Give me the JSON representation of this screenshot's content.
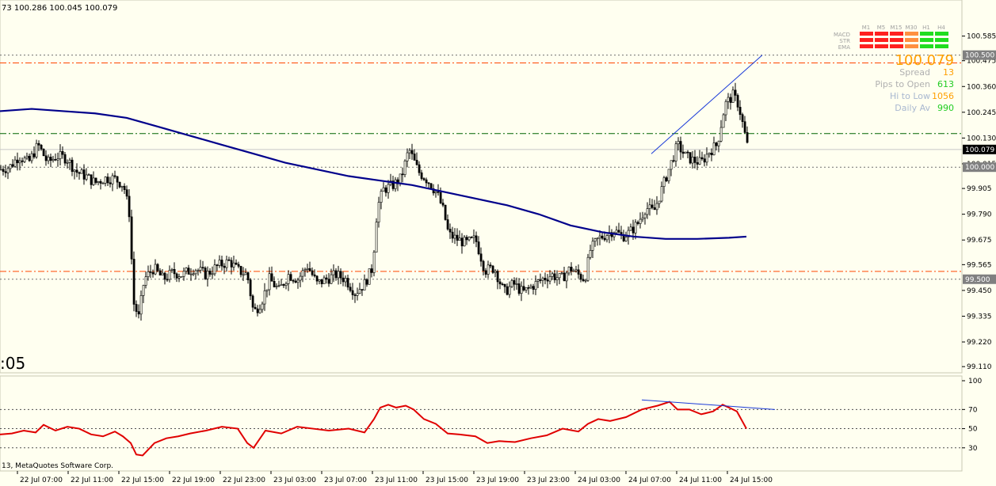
{
  "header": {
    "ohlc_text": "73 100.286 100.045 100.079"
  },
  "footer": {
    "copyright": "13, MetaQuotes Software Corp."
  },
  "countdown": ":05",
  "colors": {
    "background": "#fffff0",
    "candle": "#000000",
    "ma": "#00008b",
    "rsi": "#e00000",
    "trendline": "#1a3ad8",
    "level_green": "#006400",
    "level_orange": "#ff4500",
    "orange_text": "#ff9f00",
    "green_text": "#22cc22",
    "grey_text": "#b0b0b0",
    "light_blue_text": "#a9b8d0"
  },
  "info_panel": {
    "price": "100.079",
    "rows": [
      {
        "label": "Spread",
        "value": "13",
        "value_color": "#ff9f00"
      },
      {
        "label": "Pips to Open",
        "value": "613",
        "value_color": "#22cc22"
      },
      {
        "label": "Hi to Low",
        "value": "1056",
        "value_color": "#ff9f00"
      },
      {
        "label": "Daily Av",
        "value": "990",
        "value_color": "#22cc22"
      }
    ]
  },
  "signal_grid": {
    "timeframes": [
      "M1",
      "M5",
      "M15",
      "M30",
      "H1",
      "H4"
    ],
    "indicators": [
      "MACD",
      "STR",
      "EMA"
    ],
    "colors": [
      [
        "#ff2020",
        "#ff2020",
        "#ff2020",
        "#ff9040",
        "#20dd20",
        "#20dd20"
      ],
      [
        "#ff2020",
        "#ff2020",
        "#ff2020",
        "#ff9040",
        "#20dd20",
        "#20dd20"
      ],
      [
        "#ff2020",
        "#ff2020",
        "#ff2020",
        "#ff9040",
        "#20dd20",
        "#20dd20"
      ]
    ]
  },
  "chart_data": [
    {
      "type": "candlestick",
      "ylim": [
        99.1,
        100.64
      ],
      "y_ticks": [
        "100.585",
        "100.475",
        "100.360",
        "100.245",
        "100.130",
        "100.015",
        "99.905",
        "99.790",
        "99.675",
        "99.565",
        "99.450",
        "99.335",
        "99.220",
        "99.110"
      ],
      "price_tags": [
        {
          "label": "100.500",
          "value": 100.5
        },
        {
          "label": "100.079",
          "value": 100.079
        },
        {
          "label": "100.000",
          "value": 100.0
        },
        {
          "label": "99.500",
          "value": 99.5
        }
      ],
      "levels": [
        {
          "value": 100.5,
          "style": "dotted-grey"
        },
        {
          "value": 100.465,
          "style": "dashdot-orange"
        },
        {
          "value": 100.15,
          "style": "dashdot-green"
        },
        {
          "value": 100.0,
          "style": "dotted-grey"
        },
        {
          "value": 99.535,
          "style": "dashdot-orange"
        },
        {
          "value": 99.5,
          "style": "dotted-grey"
        }
      ],
      "x_labels": [
        "22 Jul 07:00",
        "22 Jul 11:00",
        "22 Jul 15:00",
        "22 Jul 19:00",
        "22 Jul 23:00",
        "23 Jul 03:00",
        "23 Jul 07:00",
        "23 Jul 11:00",
        "23 Jul 15:00",
        "23 Jul 19:00",
        "23 Jul 23:00",
        "24 Jul 03:00",
        "24 Jul 07:00",
        "24 Jul 11:00",
        "24 Jul 15:00"
      ],
      "close_path": [
        [
          0,
          99.99
        ],
        [
          12,
          100.0
        ],
        [
          24,
          100.05
        ],
        [
          36,
          100.02
        ],
        [
          48,
          100.1
        ],
        [
          60,
          100.02
        ],
        [
          72,
          100.05
        ],
        [
          84,
          100.04
        ],
        [
          96,
          99.98
        ],
        [
          108,
          99.96
        ],
        [
          120,
          99.93
        ],
        [
          132,
          99.95
        ],
        [
          144,
          99.95
        ],
        [
          156,
          99.92
        ],
        [
          164,
          99.78
        ],
        [
          168,
          99.4
        ],
        [
          175,
          99.33
        ],
        [
          182,
          99.5
        ],
        [
          194,
          99.55
        ],
        [
          206,
          99.5
        ],
        [
          218,
          99.53
        ],
        [
          230,
          99.52
        ],
        [
          245,
          99.55
        ],
        [
          260,
          99.52
        ],
        [
          275,
          99.56
        ],
        [
          290,
          99.58
        ],
        [
          300,
          99.54
        ],
        [
          312,
          99.52
        ],
        [
          320,
          99.35
        ],
        [
          330,
          99.4
        ],
        [
          340,
          99.5
        ],
        [
          352,
          99.45
        ],
        [
          364,
          99.52
        ],
        [
          376,
          99.5
        ],
        [
          388,
          99.56
        ],
        [
          400,
          99.48
        ],
        [
          412,
          99.5
        ],
        [
          424,
          99.52
        ],
        [
          436,
          99.5
        ],
        [
          448,
          99.44
        ],
        [
          460,
          99.48
        ],
        [
          470,
          99.55
        ],
        [
          476,
          99.82
        ],
        [
          484,
          99.9
        ],
        [
          496,
          99.92
        ],
        [
          506,
          99.95
        ],
        [
          516,
          100.08
        ],
        [
          528,
          99.98
        ],
        [
          540,
          99.94
        ],
        [
          552,
          99.88
        ],
        [
          560,
          99.8
        ],
        [
          566,
          99.7
        ],
        [
          576,
          99.68
        ],
        [
          588,
          99.66
        ],
        [
          600,
          99.68
        ],
        [
          612,
          99.54
        ],
        [
          624,
          99.55
        ],
        [
          636,
          99.44
        ],
        [
          648,
          99.48
        ],
        [
          660,
          99.44
        ],
        [
          672,
          99.47
        ],
        [
          684,
          99.5
        ],
        [
          696,
          99.52
        ],
        [
          708,
          99.5
        ],
        [
          720,
          99.55
        ],
        [
          730,
          99.52
        ],
        [
          738,
          99.5
        ],
        [
          745,
          99.63
        ],
        [
          755,
          99.68
        ],
        [
          765,
          99.7
        ],
        [
          775,
          99.72
        ],
        [
          785,
          99.69
        ],
        [
          795,
          99.71
        ],
        [
          805,
          99.75
        ],
        [
          815,
          99.82
        ],
        [
          825,
          99.8
        ],
        [
          835,
          99.9
        ],
        [
          845,
          100.0
        ],
        [
          855,
          100.1
        ],
        [
          865,
          100.05
        ],
        [
          875,
          100.03
        ],
        [
          885,
          100.02
        ],
        [
          895,
          100.07
        ],
        [
          905,
          100.1
        ],
        [
          915,
          100.28
        ],
        [
          925,
          100.32
        ],
        [
          932,
          100.28
        ],
        [
          938,
          100.18
        ],
        [
          944,
          100.08
        ]
      ],
      "series": [
        {
          "name": "",
          "x": [
            0,
            40,
            80,
            120,
            160,
            200,
            240,
            280,
            320,
            360,
            400,
            440,
            480,
            520,
            560,
            600,
            640,
            680,
            720,
            760,
            800,
            840,
            880,
            920,
            942
          ],
          "y": [
            100.25,
            100.26,
            100.25,
            100.24,
            100.22,
            100.18,
            100.14,
            100.1,
            100.06,
            100.02,
            99.99,
            99.96,
            99.94,
            99.92,
            99.89,
            99.86,
            99.83,
            99.79,
            99.74,
            99.71,
            99.69,
            99.68,
            99.68,
            99.685,
            99.69
          ]
        }
      ],
      "trendline": [
        [
          822,
          100.06
        ],
        [
          962,
          100.5
        ]
      ]
    },
    {
      "type": "line",
      "ylim": [
        10,
        100
      ],
      "y_ticks": [
        "100",
        "70",
        "50",
        "30"
      ],
      "levels": [
        70,
        50,
        30
      ],
      "series": [
        {
          "name": "",
          "x": [
            0,
            15,
            30,
            45,
            55,
            70,
            85,
            100,
            115,
            130,
            145,
            155,
            165,
            172,
            180,
            195,
            210,
            225,
            240,
            260,
            280,
            300,
            312,
            320,
            335,
            355,
            375,
            395,
            415,
            440,
            460,
            472,
            480,
            490,
            500,
            512,
            522,
            535,
            550,
            565,
            580,
            600,
            615,
            630,
            650,
            670,
            690,
            710,
            730,
            742,
            755,
            770,
            790,
            810,
            830,
            845,
            855,
            870,
            885,
            900,
            912,
            920,
            930,
            942
          ],
          "y": [
            44,
            45,
            48,
            46,
            54,
            48,
            52,
            50,
            44,
            42,
            47,
            42,
            35,
            23,
            22,
            35,
            40,
            42,
            45,
            48,
            52,
            50,
            35,
            30,
            48,
            45,
            52,
            50,
            48,
            50,
            46,
            60,
            72,
            75,
            72,
            74,
            70,
            60,
            55,
            45,
            44,
            42,
            35,
            37,
            36,
            40,
            43,
            50,
            47,
            55,
            60,
            58,
            62,
            70,
            74,
            78,
            70,
            70,
            65,
            68,
            75,
            72,
            68,
            50
          ]
        },
        {
          "name": "",
          "x": [
            810,
            978
          ],
          "y": [
            80,
            70
          ]
        }
      ]
    }
  ]
}
